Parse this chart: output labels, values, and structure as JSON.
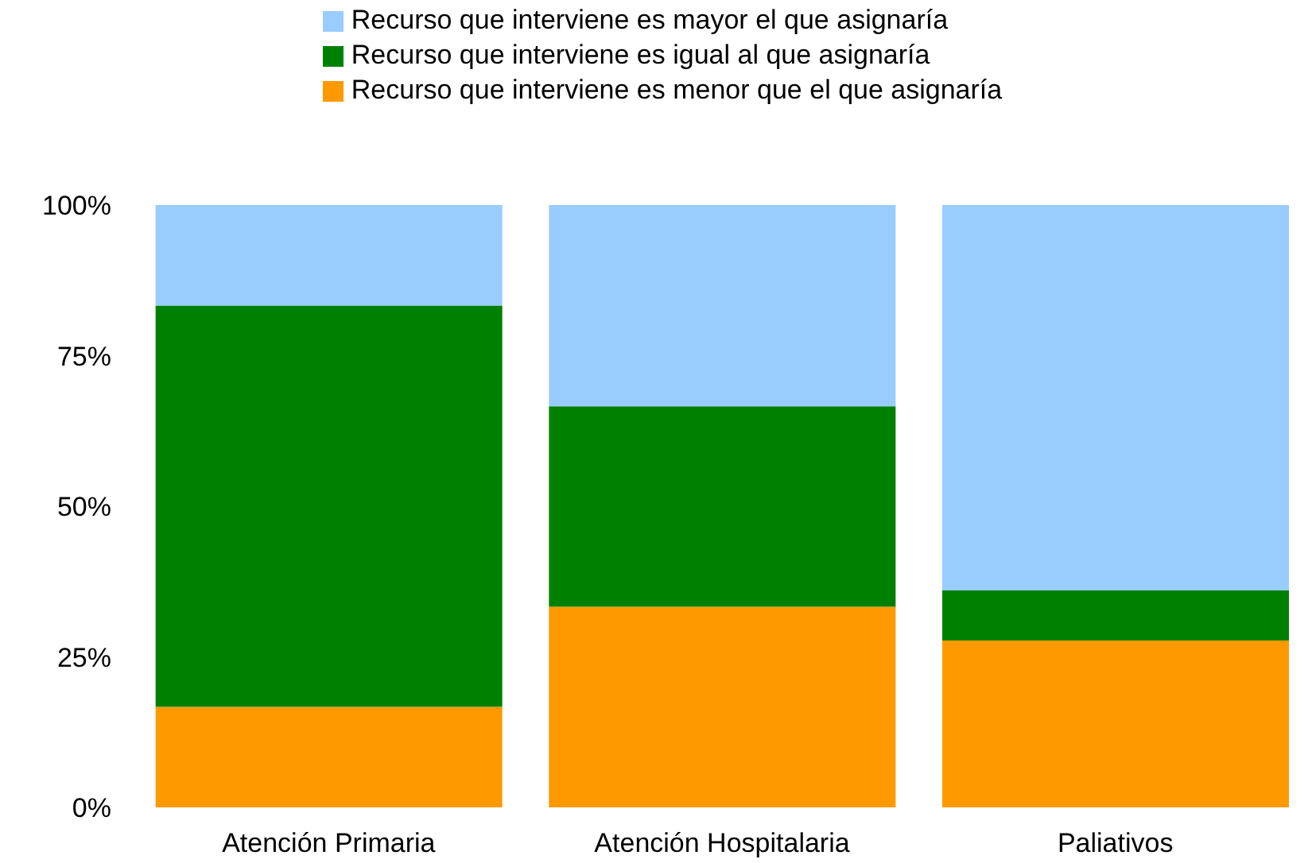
{
  "chart_data": {
    "type": "bar",
    "stacked": true,
    "categories": [
      "Atención Primaria",
      "Atención Hospitalaria",
      "Paliativos"
    ],
    "series": [
      {
        "name": "Recurso que interviene es menor que el que asignaría",
        "color": "#ff9900",
        "values": [
          16.7,
          33.3,
          27.7
        ]
      },
      {
        "name": "Recurso que interviene es igual al que asignaría",
        "color": "#008000",
        "values": [
          66.6,
          33.3,
          8.3
        ]
      },
      {
        "name": "Recurso que interviene es mayor el que asignaría",
        "color": "#99ccff",
        "values": [
          16.7,
          33.4,
          64
        ]
      }
    ],
    "ylim": [
      0,
      100
    ],
    "yticks": [
      {
        "value": 0,
        "label": "0%"
      },
      {
        "value": 25,
        "label": "25%"
      },
      {
        "value": 50,
        "label": "50%"
      },
      {
        "value": 75,
        "label": "75%"
      },
      {
        "value": 100,
        "label": "100%"
      }
    ],
    "grid": false,
    "legend": "top"
  }
}
